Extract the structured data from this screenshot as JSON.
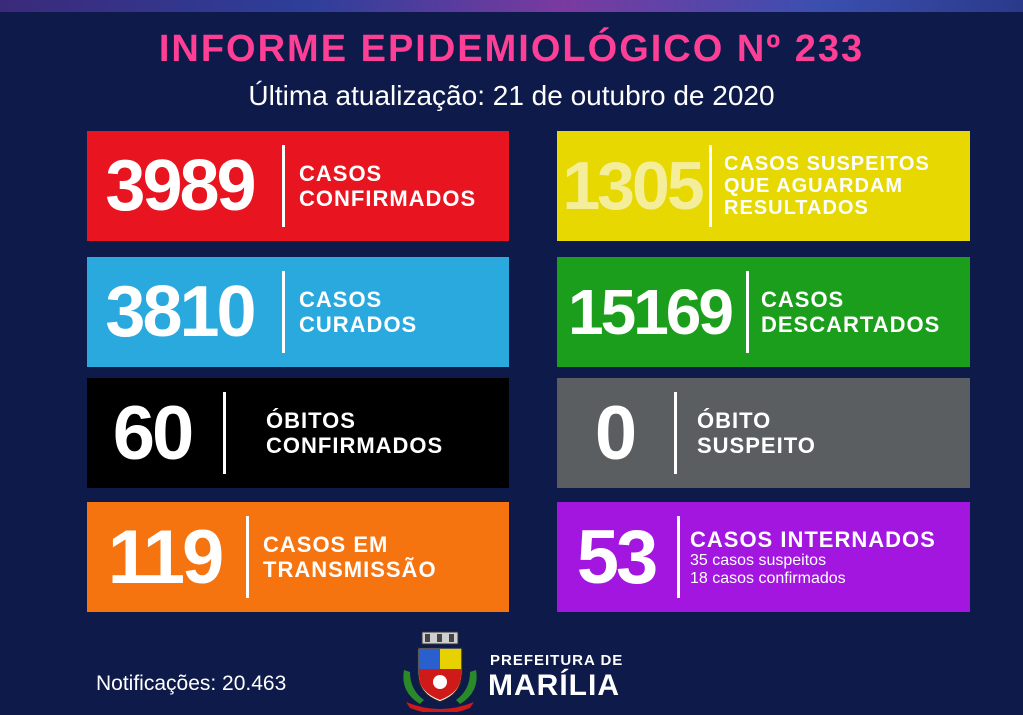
{
  "header": {
    "title": "INFORME EPIDEMIOLÓGICO Nº 233",
    "subtitle": "Última atualização: 21 de outubro de 2020"
  },
  "cards": [
    {
      "value": "3989",
      "lines": [
        "CASOS",
        "CONFIRMADOS"
      ],
      "color": "#e8141f"
    },
    {
      "value": "1305",
      "lines": [
        "CASOS SUSPEITOS",
        "QUE AGUARDAM",
        "RESULTADOS"
      ],
      "color": "#e6d800"
    },
    {
      "value": "3810",
      "lines": [
        "CASOS",
        "CURADOS"
      ],
      "color": "#29a9dd"
    },
    {
      "value": "15169",
      "lines": [
        "CASOS",
        "DESCARTADOS"
      ],
      "color": "#1b9e1b"
    },
    {
      "value": "60",
      "lines": [
        "ÓBITOS",
        "CONFIRMADOS"
      ],
      "color": "#000000"
    },
    {
      "value": "0",
      "lines": [
        "ÓBITO",
        "SUSPEITO"
      ],
      "color": "#5b5e61"
    },
    {
      "value": "119",
      "lines": [
        "CASOS EM",
        "TRANSMISSÃO"
      ],
      "color": "#f57410"
    },
    {
      "value": "53",
      "lines": [
        "CASOS INTERNADOS"
      ],
      "details": [
        "35 casos suspeitos",
        "18 casos confirmados"
      ],
      "color": "#a216e0"
    }
  ],
  "footer": {
    "notifications": "Notificações: 20.463",
    "org_line1": "PREFEITURA DE",
    "org_line2": "MARÍLIA",
    "crest_icon": "city-crest-icon"
  }
}
